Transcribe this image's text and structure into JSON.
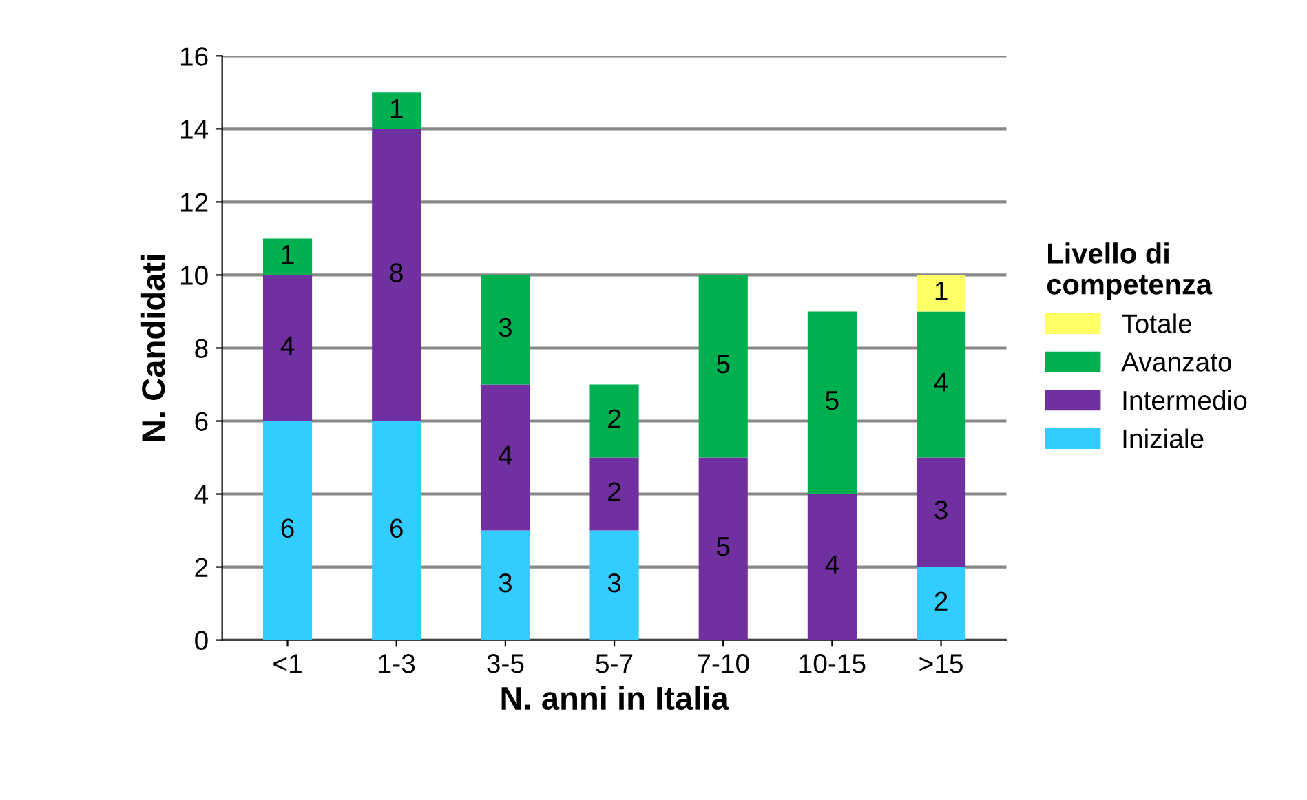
{
  "chart_data": {
    "type": "bar",
    "stacked": true,
    "xlabel": "N. anni in Italia",
    "ylabel": "N. Candidati",
    "legend_title": "Livello di\ncompetenza",
    "categories": [
      "<1",
      "1-3",
      "3-5",
      "5-7",
      "7-10",
      "10-15",
      ">15"
    ],
    "series": [
      {
        "name": "Iniziale",
        "color": "#33ccff",
        "values": [
          6,
          6,
          3,
          3,
          null,
          null,
          2
        ]
      },
      {
        "name": "Intermedio",
        "color": "#7030a0",
        "values": [
          4,
          8,
          4,
          2,
          5,
          4,
          3
        ]
      },
      {
        "name": "Avanzato",
        "color": "#00b050",
        "values": [
          1,
          1,
          3,
          2,
          5,
          5,
          4
        ]
      },
      {
        "name": "Totale",
        "color": "#ffff66",
        "values": [
          null,
          null,
          null,
          null,
          null,
          null,
          1
        ]
      }
    ],
    "ylim": [
      0,
      16
    ],
    "yticks": [
      0,
      2,
      4,
      6,
      8,
      10,
      12,
      14,
      16
    ],
    "grid": "y",
    "legend": "right",
    "data_labels": true
  }
}
